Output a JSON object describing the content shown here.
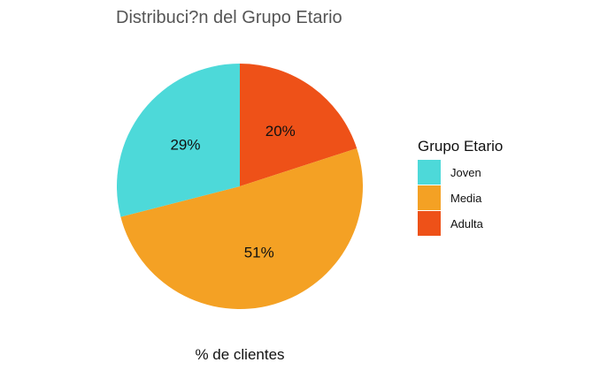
{
  "chart_data": {
    "type": "pie",
    "title": "Distribuci?n del Grupo Etario",
    "xlabel": "% de clientes",
    "ylabel": "",
    "categories": [
      "Joven",
      "Media",
      "Adulta"
    ],
    "values": [
      29,
      51,
      20
    ],
    "labels": [
      "29%",
      "51%",
      "20%"
    ],
    "colors": [
      "#4DD9D9",
      "#F4A124",
      "#EE5118"
    ],
    "legend": {
      "title": "Grupo Etario",
      "position": "right",
      "items": [
        "Joven",
        "Media",
        "Adulta"
      ]
    },
    "start_angle": "12 o'clock",
    "direction": "counterclockwise from top: Adulta, Media, Joven in clockwise order"
  }
}
